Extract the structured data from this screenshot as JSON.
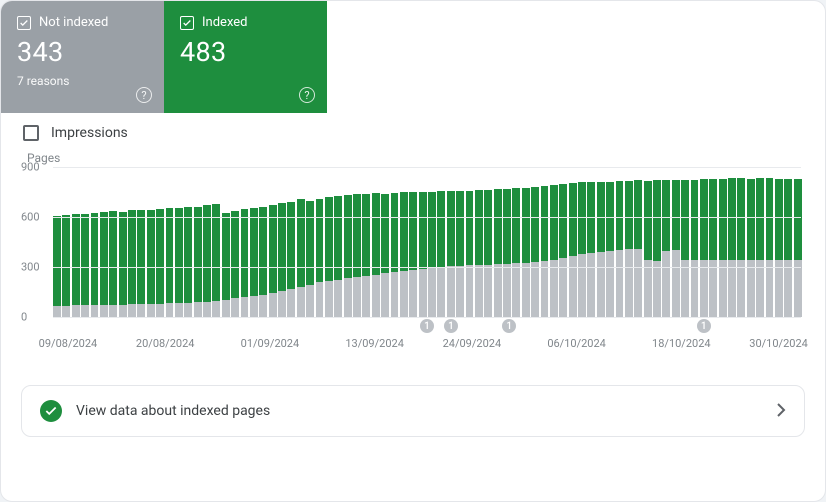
{
  "colors": {
    "not_indexed_card_bg": "#9aa0a6",
    "indexed_card_bg": "#1e8e3e",
    "bar_indexed": "#1e8e3e",
    "bar_not_indexed": "#bdc1c6",
    "gridline": "#e8eaed",
    "text_muted": "#80868b"
  },
  "cards": {
    "not_indexed": {
      "label": "Not indexed",
      "value": "343",
      "subtext": "7 reasons"
    },
    "indexed": {
      "label": "Indexed",
      "value": "483"
    }
  },
  "impressions": {
    "label": "Impressions"
  },
  "chart": {
    "type": "stacked-bar",
    "y_axis_title": "Pages",
    "ylim": [
      0,
      900
    ],
    "ytick_step": 300,
    "y_ticks": [
      0,
      300,
      600,
      900
    ],
    "x_labels": [
      {
        "text": "09/08/2024",
        "pct": 2
      },
      {
        "text": "20/08/2024",
        "pct": 15
      },
      {
        "text": "01/09/2024",
        "pct": 29
      },
      {
        "text": "13/09/2024",
        "pct": 43
      },
      {
        "text": "24/09/2024",
        "pct": 56
      },
      {
        "text": "06/10/2024",
        "pct": 70
      },
      {
        "text": "18/10/2024",
        "pct": 84
      },
      {
        "text": "30/10/2024",
        "pct": 97
      }
    ],
    "markers": [
      {
        "label": "1",
        "pct": 50
      },
      {
        "label": "1",
        "pct": 53.2
      },
      {
        "label": "1",
        "pct": 61
      },
      {
        "label": "1",
        "pct": 87
      }
    ],
    "series": [
      {
        "not_indexed": 65,
        "indexed": 540
      },
      {
        "not_indexed": 68,
        "indexed": 545
      },
      {
        "not_indexed": 70,
        "indexed": 550
      },
      {
        "not_indexed": 70,
        "indexed": 548
      },
      {
        "not_indexed": 72,
        "indexed": 552
      },
      {
        "not_indexed": 72,
        "indexed": 558
      },
      {
        "not_indexed": 74,
        "indexed": 560
      },
      {
        "not_indexed": 75,
        "indexed": 558
      },
      {
        "not_indexed": 78,
        "indexed": 563
      },
      {
        "not_indexed": 78,
        "indexed": 567
      },
      {
        "not_indexed": 80,
        "indexed": 565
      },
      {
        "not_indexed": 80,
        "indexed": 570
      },
      {
        "not_indexed": 82,
        "indexed": 572
      },
      {
        "not_indexed": 82,
        "indexed": 575
      },
      {
        "not_indexed": 85,
        "indexed": 578
      },
      {
        "not_indexed": 88,
        "indexed": 575
      },
      {
        "not_indexed": 92,
        "indexed": 582
      },
      {
        "not_indexed": 95,
        "indexed": 585
      },
      {
        "not_indexed": 105,
        "indexed": 518
      },
      {
        "not_indexed": 115,
        "indexed": 520
      },
      {
        "not_indexed": 120,
        "indexed": 528
      },
      {
        "not_indexed": 128,
        "indexed": 528
      },
      {
        "not_indexed": 135,
        "indexed": 528
      },
      {
        "not_indexed": 145,
        "indexed": 525
      },
      {
        "not_indexed": 155,
        "indexed": 528
      },
      {
        "not_indexed": 168,
        "indexed": 525
      },
      {
        "not_indexed": 180,
        "indexed": 528
      },
      {
        "not_indexed": 195,
        "indexed": 500
      },
      {
        "not_indexed": 208,
        "indexed": 502
      },
      {
        "not_indexed": 218,
        "indexed": 500
      },
      {
        "not_indexed": 225,
        "indexed": 500
      },
      {
        "not_indexed": 235,
        "indexed": 498
      },
      {
        "not_indexed": 240,
        "indexed": 498
      },
      {
        "not_indexed": 245,
        "indexed": 492
      },
      {
        "not_indexed": 255,
        "indexed": 490
      },
      {
        "not_indexed": 263,
        "indexed": 478
      },
      {
        "not_indexed": 270,
        "indexed": 475
      },
      {
        "not_indexed": 278,
        "indexed": 470
      },
      {
        "not_indexed": 285,
        "indexed": 465
      },
      {
        "not_indexed": 290,
        "indexed": 460
      },
      {
        "not_indexed": 298,
        "indexed": 455
      },
      {
        "not_indexed": 302,
        "indexed": 452
      },
      {
        "not_indexed": 306,
        "indexed": 452
      },
      {
        "not_indexed": 308,
        "indexed": 450
      },
      {
        "not_indexed": 310,
        "indexed": 448
      },
      {
        "not_indexed": 312,
        "indexed": 448
      },
      {
        "not_indexed": 315,
        "indexed": 448
      },
      {
        "not_indexed": 318,
        "indexed": 450
      },
      {
        "not_indexed": 320,
        "indexed": 450
      },
      {
        "not_indexed": 322,
        "indexed": 450
      },
      {
        "not_indexed": 325,
        "indexed": 450
      },
      {
        "not_indexed": 330,
        "indexed": 450
      },
      {
        "not_indexed": 338,
        "indexed": 450
      },
      {
        "not_indexed": 345,
        "indexed": 448
      },
      {
        "not_indexed": 355,
        "indexed": 445
      },
      {
        "not_indexed": 368,
        "indexed": 435
      },
      {
        "not_indexed": 378,
        "indexed": 430
      },
      {
        "not_indexed": 385,
        "indexed": 423
      },
      {
        "not_indexed": 392,
        "indexed": 418
      },
      {
        "not_indexed": 398,
        "indexed": 415
      },
      {
        "not_indexed": 405,
        "indexed": 410
      },
      {
        "not_indexed": 408,
        "indexed": 410
      },
      {
        "not_indexed": 410,
        "indexed": 412
      },
      {
        "not_indexed": 340,
        "indexed": 478
      },
      {
        "not_indexed": 338,
        "indexed": 482
      },
      {
        "not_indexed": 398,
        "indexed": 425
      },
      {
        "not_indexed": 400,
        "indexed": 423
      },
      {
        "not_indexed": 342,
        "indexed": 480
      },
      {
        "not_indexed": 342,
        "indexed": 482
      },
      {
        "not_indexed": 342,
        "indexed": 485
      },
      {
        "not_indexed": 340,
        "indexed": 488
      },
      {
        "not_indexed": 340,
        "indexed": 490
      },
      {
        "not_indexed": 340,
        "indexed": 492
      },
      {
        "not_indexed": 342,
        "indexed": 490
      },
      {
        "not_indexed": 345,
        "indexed": 485
      },
      {
        "not_indexed": 345,
        "indexed": 488
      },
      {
        "not_indexed": 345,
        "indexed": 490
      },
      {
        "not_indexed": 343,
        "indexed": 485
      },
      {
        "not_indexed": 343,
        "indexed": 488
      },
      {
        "not_indexed": 343,
        "indexed": 483
      }
    ]
  },
  "footer": {
    "text": "View data about indexed pages"
  }
}
